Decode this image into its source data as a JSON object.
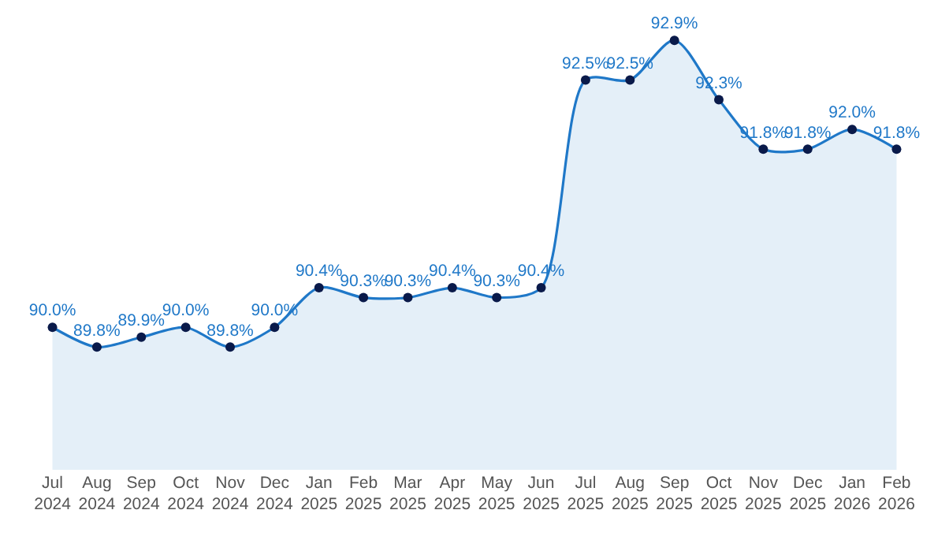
{
  "chart_data": {
    "type": "area",
    "categories": [
      "Jul 2024",
      "Aug 2024",
      "Sep 2024",
      "Oct 2024",
      "Nov 2024",
      "Dec 2024",
      "Jan 2025",
      "Feb 2025",
      "Mar 2025",
      "Apr 2025",
      "May 2025",
      "Jun 2025",
      "Jul 2025",
      "Aug 2025",
      "Sep 2025",
      "Oct 2025",
      "Nov 2025",
      "Dec 2025",
      "Jan 2026",
      "Feb 2026"
    ],
    "series": [
      {
        "color": "#1f78c8",
        "values": [
          90.0,
          89.8,
          89.9,
          90.0,
          89.8,
          90.0,
          90.4,
          90.3,
          90.3,
          90.4,
          90.3,
          90.4,
          92.5,
          92.5,
          92.9,
          92.3,
          91.8,
          91.8,
          92.0,
          91.8
        ],
        "value_labels": [
          "90.0%",
          "89.8%",
          "89.9%",
          "90.0%",
          "89.8%",
          "90.0%",
          "90.4%",
          "90.3%",
          "90.3%",
          "90.4%",
          "90.3%",
          "90.4%",
          "92.5%",
          "92.5%",
          "92.9%",
          "92.3%",
          "91.8%",
          "91.8%",
          "92.0%",
          "91.8%"
        ]
      }
    ],
    "tick_labels": "x",
    "marker": "circle",
    "line_style": "solid"
  }
}
